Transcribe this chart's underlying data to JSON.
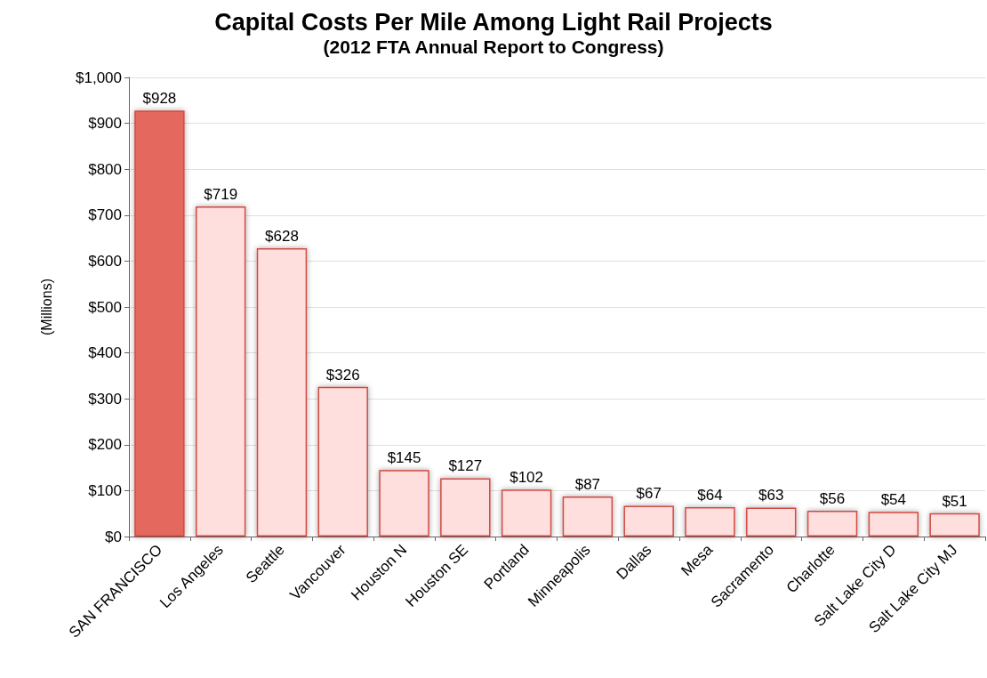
{
  "chart_data": {
    "type": "bar",
    "title": "Capital Costs Per Mile Among Light Rail Projects",
    "subtitle": "(2012 FTA Annual Report to Congress)",
    "ylabel": "(Millions)",
    "categories": [
      "SAN FRANCISCO",
      "Los Angeles",
      "Seattle",
      "Vancouver",
      "Houston N",
      "Houston SE",
      "Portland",
      "Minneapolis",
      "Dallas",
      "Mesa",
      "Sacramento",
      "Charlotte",
      "Salt Lake City D",
      "Salt Lake City MJ"
    ],
    "values": [
      928,
      719,
      628,
      326,
      145,
      127,
      102,
      87,
      67,
      64,
      63,
      56,
      54,
      51
    ],
    "value_labels": [
      "$928",
      "$719",
      "$628",
      "$326",
      "$145",
      "$127",
      "$102",
      "$87",
      "$67",
      "$64",
      "$63",
      "$56",
      "$54",
      "$51"
    ],
    "colors": [
      "#e5675e",
      "#ffdede",
      "#ffdede",
      "#ffdede",
      "#ffdede",
      "#ffdede",
      "#ffdede",
      "#ffdede",
      "#ffdede",
      "#ffdede",
      "#ffdede",
      "#ffdede",
      "#ffdede",
      "#ffdede"
    ],
    "ylim": [
      0,
      1000
    ],
    "yticks": [
      {
        "value": 0,
        "label": "$0"
      },
      {
        "value": 100,
        "label": "$100"
      },
      {
        "value": 200,
        "label": "$200"
      },
      {
        "value": 300,
        "label": "$300"
      },
      {
        "value": 400,
        "label": "$400"
      },
      {
        "value": 500,
        "label": "$500"
      },
      {
        "value": 600,
        "label": "$600"
      },
      {
        "value": 700,
        "label": "$700"
      },
      {
        "value": 800,
        "label": "$800"
      },
      {
        "value": 900,
        "label": "$900"
      },
      {
        "value": 1000,
        "label": "$1,000"
      }
    ],
    "grid": "y"
  }
}
